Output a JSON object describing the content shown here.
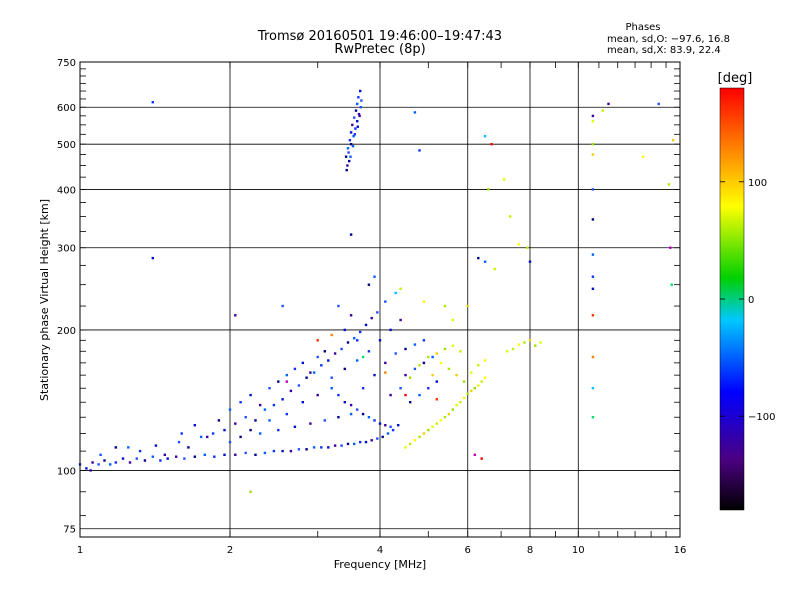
{
  "chart_data": {
    "type": "scatter",
    "title": "Tromsø 20160501 19:46:00–19:47:43",
    "subtitle": "RwPretec (8p)",
    "xlabel": "Frequency [MHz]",
    "ylabel": "Stationary phase Virtual Height [km]",
    "x_scale": "log",
    "y_scale": "log",
    "xlim": [
      1,
      16
    ],
    "ylim": [
      72,
      750
    ],
    "x_ticks": [
      1,
      2,
      4,
      6,
      8,
      10,
      16
    ],
    "x_tick_labels": [
      "1",
      "2",
      "4",
      "6",
      "8",
      "10",
      "16"
    ],
    "y_ticks": [
      75,
      100,
      200,
      300,
      400,
      500,
      600,
      750
    ],
    "y_tick_labels": [
      "75",
      "100",
      "200",
      "300",
      "400",
      "500",
      "600",
      "750"
    ],
    "grid": true,
    "stats": {
      "header": "Phases",
      "line_o": "mean, sd,O: −97.6, 16.8",
      "line_x": "mean, sd,X:  83.9, 22.4"
    },
    "colorbar": {
      "label": "[deg]",
      "range": [
        -180,
        180
      ],
      "ticks": [
        100,
        0,
        -100
      ],
      "tick_labels": [
        "100",
        "0",
        "−100"
      ]
    },
    "series": [
      {
        "phase_group": "O-mode (~−98 deg)",
        "points": [
          [
            1.0,
            103
          ],
          [
            1.03,
            101
          ],
          [
            1.06,
            104
          ],
          [
            1.09,
            103
          ],
          [
            1.12,
            105
          ],
          [
            1.15,
            103
          ],
          [
            1.18,
            104
          ],
          [
            1.22,
            106
          ],
          [
            1.26,
            104
          ],
          [
            1.3,
            106
          ],
          [
            1.35,
            105
          ],
          [
            1.4,
            107
          ],
          [
            1.45,
            105
          ],
          [
            1.5,
            106
          ],
          [
            1.56,
            107
          ],
          [
            1.62,
            106
          ],
          [
            1.7,
            107
          ],
          [
            1.78,
            108
          ],
          [
            1.86,
            107
          ],
          [
            1.95,
            108
          ],
          [
            2.05,
            108
          ],
          [
            2.15,
            109
          ],
          [
            2.25,
            108
          ],
          [
            2.35,
            109
          ],
          [
            2.45,
            110
          ],
          [
            2.55,
            110
          ],
          [
            2.65,
            110
          ],
          [
            2.75,
            111
          ],
          [
            2.85,
            111
          ],
          [
            2.95,
            112
          ],
          [
            3.05,
            112
          ],
          [
            3.15,
            112
          ],
          [
            3.25,
            113
          ],
          [
            3.35,
            113
          ],
          [
            3.45,
            114
          ],
          [
            3.55,
            114
          ],
          [
            3.65,
            115
          ],
          [
            3.75,
            115
          ],
          [
            3.85,
            116
          ],
          [
            3.95,
            117
          ],
          [
            4.05,
            118
          ],
          [
            4.15,
            120
          ],
          [
            4.25,
            122
          ],
          [
            4.35,
            125
          ],
          [
            1.05,
            100
          ],
          [
            1.1,
            108
          ],
          [
            1.18,
            112
          ],
          [
            1.25,
            112
          ],
          [
            1.32,
            110
          ],
          [
            1.42,
            113
          ],
          [
            1.48,
            108
          ],
          [
            1.58,
            115
          ],
          [
            1.65,
            112
          ],
          [
            1.75,
            118
          ],
          [
            1.85,
            120
          ],
          [
            1.95,
            122
          ],
          [
            2.05,
            126
          ],
          [
            2.15,
            130
          ],
          [
            2.25,
            128
          ],
          [
            2.35,
            135
          ],
          [
            2.45,
            138
          ],
          [
            2.55,
            142
          ],
          [
            2.65,
            148
          ],
          [
            2.75,
            152
          ],
          [
            2.85,
            158
          ],
          [
            2.95,
            162
          ],
          [
            3.05,
            168
          ],
          [
            3.15,
            172
          ],
          [
            3.25,
            178
          ],
          [
            3.35,
            182
          ],
          [
            3.45,
            188
          ],
          [
            3.55,
            192
          ],
          [
            3.65,
            198
          ],
          [
            3.75,
            205
          ],
          [
            3.85,
            212
          ],
          [
            3.95,
            218
          ],
          [
            1.9,
            128
          ],
          [
            2.0,
            135
          ],
          [
            2.1,
            140
          ],
          [
            2.2,
            145
          ],
          [
            2.3,
            138
          ],
          [
            2.4,
            150
          ],
          [
            2.5,
            155
          ],
          [
            2.6,
            160
          ],
          [
            2.7,
            165
          ],
          [
            2.8,
            170
          ],
          [
            2.9,
            162
          ],
          [
            3.0,
            175
          ],
          [
            3.1,
            180
          ],
          [
            3.2,
            150
          ],
          [
            3.3,
            145
          ],
          [
            3.4,
            140
          ],
          [
            3.5,
            138
          ],
          [
            3.6,
            135
          ],
          [
            3.7,
            132
          ],
          [
            3.8,
            130
          ],
          [
            3.9,
            128
          ],
          [
            4.0,
            126
          ],
          [
            4.1,
            125
          ],
          [
            4.2,
            124
          ],
          [
            2.1,
            118
          ],
          [
            2.3,
            120
          ],
          [
            2.5,
            122
          ],
          [
            2.7,
            124
          ],
          [
            2.9,
            126
          ],
          [
            3.1,
            128
          ],
          [
            3.3,
            130
          ],
          [
            3.5,
            132
          ],
          [
            3.7,
            150
          ],
          [
            3.9,
            160
          ],
          [
            4.1,
            170
          ],
          [
            4.3,
            178
          ],
          [
            4.5,
            182
          ],
          [
            4.7,
            186
          ],
          [
            4.9,
            190
          ],
          [
            4.2,
            200
          ],
          [
            4.4,
            210
          ],
          [
            4.1,
            230
          ],
          [
            3.8,
            250
          ],
          [
            3.9,
            260
          ],
          [
            3.6,
            190
          ],
          [
            3.4,
            200
          ],
          [
            3.5,
            215
          ],
          [
            3.3,
            225
          ],
          [
            4.6,
            140
          ],
          [
            4.8,
            145
          ],
          [
            5.0,
            150
          ],
          [
            5.2,
            155
          ],
          [
            4.5,
            160
          ],
          [
            4.7,
            165
          ],
          [
            4.9,
            170
          ],
          [
            5.1,
            175
          ],
          [
            1.6,
            120
          ],
          [
            1.7,
            125
          ],
          [
            1.8,
            118
          ],
          [
            2.0,
            115
          ],
          [
            2.2,
            122
          ],
          [
            2.4,
            128
          ],
          [
            2.6,
            132
          ],
          [
            2.8,
            140
          ],
          [
            3.0,
            145
          ],
          [
            3.2,
            158
          ],
          [
            3.4,
            165
          ],
          [
            3.6,
            172
          ],
          [
            3.8,
            180
          ],
          [
            4.0,
            190
          ],
          [
            4.2,
            145
          ],
          [
            4.4,
            150
          ],
          [
            3.42,
            470
          ],
          [
            3.45,
            490
          ],
          [
            3.48,
            510
          ],
          [
            3.5,
            530
          ],
          [
            3.52,
            550
          ],
          [
            3.55,
            570
          ],
          [
            3.58,
            590
          ],
          [
            3.6,
            610
          ],
          [
            3.62,
            630
          ],
          [
            3.65,
            650
          ],
          [
            3.44,
            450
          ],
          [
            3.46,
            480
          ],
          [
            3.5,
            500
          ],
          [
            3.54,
            520
          ],
          [
            3.57,
            540
          ],
          [
            3.6,
            560
          ],
          [
            3.63,
            580
          ],
          [
            3.66,
            600
          ],
          [
            3.47,
            460
          ],
          [
            3.53,
            495
          ],
          [
            3.56,
            525
          ],
          [
            3.61,
            545
          ],
          [
            3.64,
            575
          ],
          [
            3.67,
            620
          ],
          [
            3.43,
            440
          ],
          [
            3.49,
            470
          ],
          [
            1.4,
            615
          ],
          [
            1.4,
            285
          ],
          [
            2.05,
            215
          ],
          [
            2.55,
            225
          ],
          [
            3.5,
            320
          ],
          [
            4.7,
            585
          ],
          [
            4.8,
            485
          ],
          [
            8.0,
            280
          ],
          [
            10.7,
            575
          ],
          [
            10.7,
            400
          ],
          [
            10.7,
            345
          ],
          [
            10.7,
            290
          ],
          [
            10.7,
            260
          ],
          [
            10.7,
            245
          ],
          [
            11.5,
            610
          ],
          [
            14.5,
            610
          ],
          [
            6.3,
            285
          ],
          [
            6.5,
            280
          ]
        ]
      },
      {
        "phase_group": "X-mode (~84 deg)",
        "points": [
          [
            4.5,
            112
          ],
          [
            4.6,
            114
          ],
          [
            4.7,
            116
          ],
          [
            4.8,
            118
          ],
          [
            4.9,
            120
          ],
          [
            5.0,
            122
          ],
          [
            5.1,
            124
          ],
          [
            5.2,
            126
          ],
          [
            5.3,
            128
          ],
          [
            5.4,
            130
          ],
          [
            5.5,
            132
          ],
          [
            5.6,
            135
          ],
          [
            5.7,
            138
          ],
          [
            5.8,
            140
          ],
          [
            5.9,
            143
          ],
          [
            6.0,
            146
          ],
          [
            6.1,
            148
          ],
          [
            6.2,
            150
          ],
          [
            6.3,
            152
          ],
          [
            6.4,
            155
          ],
          [
            6.5,
            158
          ],
          [
            5.0,
            175
          ],
          [
            5.2,
            178
          ],
          [
            5.4,
            182
          ],
          [
            5.6,
            185
          ],
          [
            5.8,
            180
          ],
          [
            5.3,
            170
          ],
          [
            5.5,
            165
          ],
          [
            5.7,
            160
          ],
          [
            5.9,
            155
          ],
          [
            6.1,
            162
          ],
          [
            6.3,
            168
          ],
          [
            6.5,
            172
          ],
          [
            4.8,
            168
          ],
          [
            5.1,
            160
          ],
          [
            4.6,
            158
          ],
          [
            7.2,
            180
          ],
          [
            7.4,
            182
          ],
          [
            7.6,
            186
          ],
          [
            7.8,
            188
          ],
          [
            8.0,
            190
          ],
          [
            8.2,
            185
          ],
          [
            8.4,
            188
          ],
          [
            4.4,
            245
          ],
          [
            4.9,
            230
          ],
          [
            5.4,
            225
          ],
          [
            6.0,
            225
          ],
          [
            6.6,
            400
          ],
          [
            7.1,
            420
          ],
          [
            7.3,
            350
          ],
          [
            7.6,
            305
          ],
          [
            7.9,
            300
          ],
          [
            10.7,
            475
          ],
          [
            10.7,
            500
          ],
          [
            10.7,
            560
          ],
          [
            11.2,
            590
          ],
          [
            13.5,
            470
          ],
          [
            15.2,
            410
          ],
          [
            15.5,
            510
          ],
          [
            2.2,
            90
          ],
          [
            5.6,
            210
          ],
          [
            6.8,
            270
          ]
        ]
      },
      {
        "phase_group": "other phases",
        "points": [
          [
            10.7,
            215
          ],
          [
            10.7,
            175
          ],
          [
            10.7,
            150
          ],
          [
            10.7,
            130
          ],
          [
            6.2,
            108
          ],
          [
            6.4,
            106
          ],
          [
            3.0,
            190
          ],
          [
            3.2,
            195
          ],
          [
            4.3,
            240
          ],
          [
            3.7,
            175
          ],
          [
            2.6,
            155
          ],
          [
            4.5,
            145
          ],
          [
            5.2,
            142
          ],
          [
            4.1,
            162
          ],
          [
            6.5,
            520
          ],
          [
            15.4,
            250
          ],
          [
            15.3,
            300
          ],
          [
            6.7,
            500
          ]
        ]
      }
    ]
  }
}
